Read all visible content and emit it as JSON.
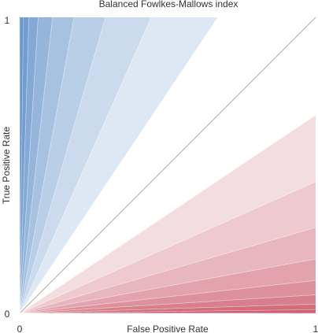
{
  "chart_data": {
    "type": "contour",
    "title": "Balanced Fowlkes-Mallows index",
    "xlabel": "False Positive Rate",
    "ylabel": "True Positive Rate",
    "xlim": [
      0,
      1
    ],
    "ylim": [
      0,
      1
    ],
    "x_ticks": [
      "0",
      "1"
    ],
    "y_ticks": [
      "0",
      "1"
    ],
    "function": "balanced Fowlkes-Mallows index of TPR and FPR; zero contour at TPR = sqrt(FPR)",
    "contour_levels": [
      -0.9,
      -0.8,
      -0.7,
      -0.6,
      -0.5,
      -0.4,
      -0.3,
      -0.2,
      -0.1,
      0,
      0.1,
      0.2,
      0.3,
      0.4,
      0.5,
      0.6,
      0.7,
      0.8,
      0.9
    ],
    "color_scale": {
      "negative": "#c44256",
      "zero": "#ffffff",
      "positive": "#4a80c2"
    },
    "contour_line_color": "#a9a9a9",
    "grid": false,
    "legend": "none"
  }
}
